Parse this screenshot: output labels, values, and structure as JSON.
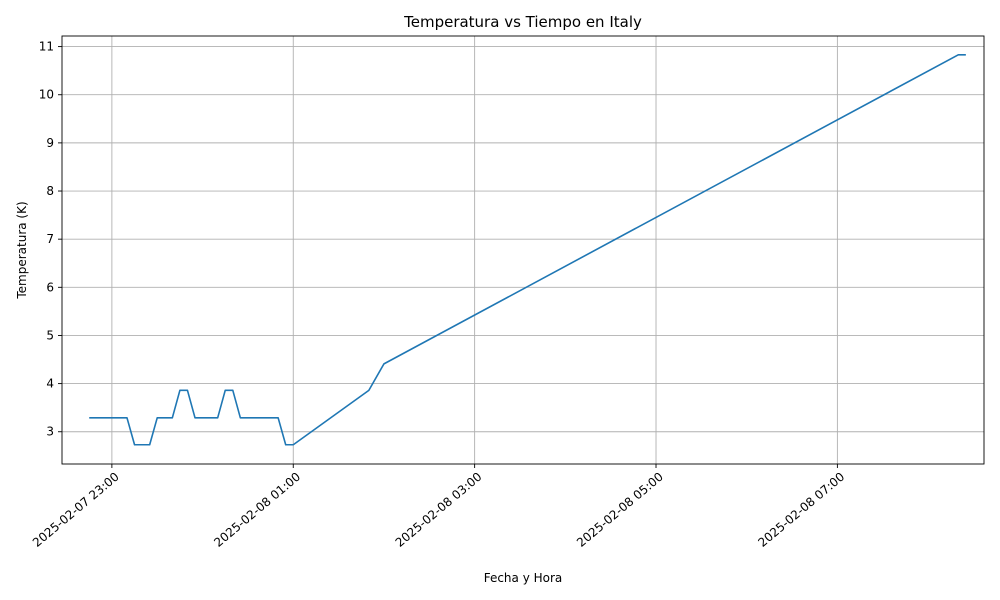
{
  "chart_data": {
    "type": "line",
    "title": "Temperatura vs Tiempo en Italy",
    "xlabel": "Fecha y Hora",
    "ylabel": "Temperatura (K)",
    "ylim": [
      2.33,
      11.22
    ],
    "xlim": [
      "2025-02-07 22:27",
      "2025-02-08 08:37"
    ],
    "grid": true,
    "line_color": "#1f77b4",
    "yticks": [
      3,
      4,
      5,
      6,
      7,
      8,
      9,
      10,
      11
    ],
    "xticks": [
      "2025-02-07 23:00",
      "2025-02-08 01:00",
      "2025-02-08 03:00",
      "2025-02-08 05:00",
      "2025-02-08 07:00"
    ],
    "xtick_labels": [
      "2025-02-07 23:00",
      "2025-02-08 01:00",
      "2025-02-08 03:00",
      "2025-02-08 05:00",
      "2025-02-08 07:00"
    ],
    "series": [
      {
        "x": [
          "2025-02-07 22:45",
          "2025-02-07 22:50",
          "2025-02-07 22:55",
          "2025-02-07 23:00",
          "2025-02-07 23:05",
          "2025-02-07 23:10",
          "2025-02-07 23:15",
          "2025-02-07 23:20",
          "2025-02-07 23:25",
          "2025-02-07 23:30",
          "2025-02-07 23:35",
          "2025-02-07 23:40",
          "2025-02-07 23:45",
          "2025-02-07 23:50",
          "2025-02-07 23:55",
          "2025-02-08 00:00",
          "2025-02-08 00:05",
          "2025-02-08 00:10",
          "2025-02-08 00:15",
          "2025-02-08 00:20",
          "2025-02-08 00:25",
          "2025-02-08 00:30",
          "2025-02-08 00:35",
          "2025-02-08 00:40",
          "2025-02-08 00:45",
          "2025-02-08 00:50",
          "2025-02-08 00:55",
          "2025-02-08 01:00",
          "2025-02-08 01:50",
          "2025-02-08 02:00",
          "2025-02-08 08:20",
          "2025-02-08 08:25"
        ],
        "values": [
          3.29,
          3.29,
          3.29,
          3.29,
          3.29,
          3.29,
          2.73,
          2.73,
          2.73,
          3.29,
          3.29,
          3.29,
          3.86,
          3.86,
          3.29,
          3.29,
          3.29,
          3.29,
          3.86,
          3.86,
          3.29,
          3.29,
          3.29,
          3.29,
          3.29,
          3.29,
          2.73,
          2.73,
          3.86,
          4.41,
          10.83,
          10.83
        ]
      }
    ]
  }
}
